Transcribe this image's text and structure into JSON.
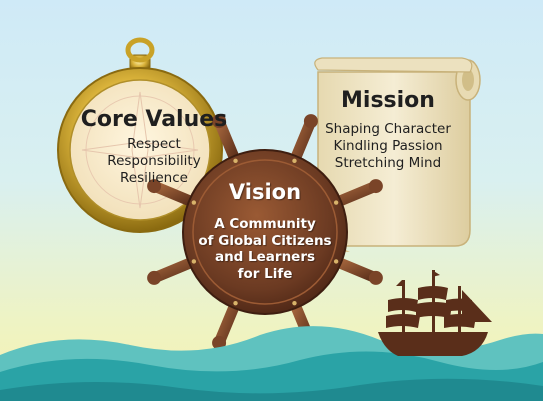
{
  "core_values": {
    "title": "Core Values",
    "items": [
      "Respect",
      "Responsibility",
      "Resilience"
    ]
  },
  "mission": {
    "title": "Mission",
    "items": [
      "Shaping Character",
      "Kindling Passion",
      "Stretching Mind"
    ]
  },
  "vision": {
    "title": "Vision",
    "lines": [
      "A Community",
      "of Global Citizens",
      "and Learners",
      "for Life"
    ]
  },
  "colors": {
    "sky_top": "#cfeaf7",
    "sky_bottom": "#f6f2b0",
    "sea": "#2aa3a6",
    "wood": "#6b3a22",
    "gold": "#c9a227",
    "parchment": "#efe6c9",
    "ship": "#5a2e1a"
  },
  "icons": [
    "compass-icon",
    "scroll-icon",
    "ship-wheel-icon",
    "sailing-ship-icon",
    "waves-icon"
  ]
}
